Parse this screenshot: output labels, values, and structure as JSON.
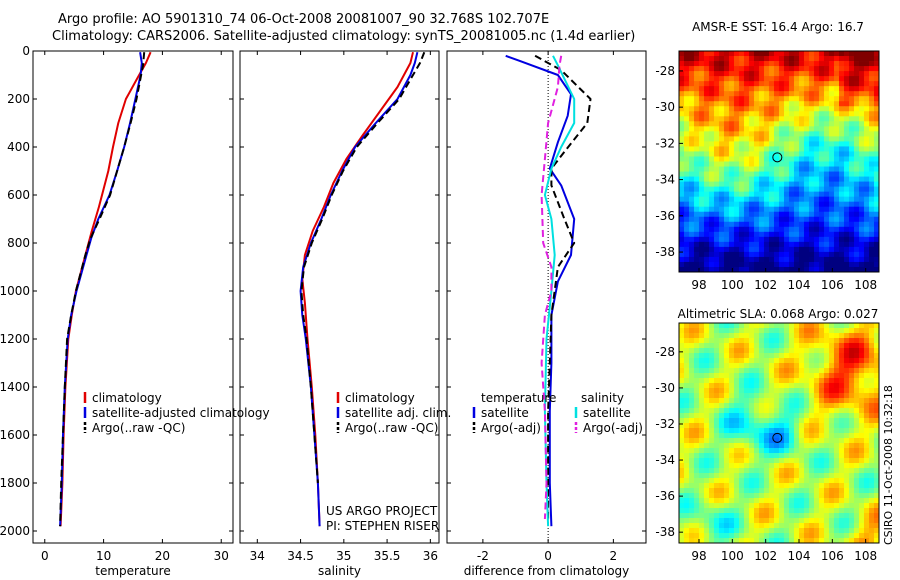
{
  "titles": {
    "line1": "Argo profile: AO 5901310_74 06-Oct-2008 20081007_90 32.768S 102.707E",
    "line2": "Climatology: CARS2006. Satellite-adjusted climatology: synTS_20081005.nc (1.4d earlier)"
  },
  "footnote": {
    "line1": "US ARGO PROJECT",
    "line2": "PI: STEPHEN RISER"
  },
  "stamp": "CSIRO 11-Oct-2008 10:32:18",
  "colors": {
    "climatology": "#e00000",
    "satellite": "#0000e0",
    "argo": "#000000",
    "cyan": "#00e0e0",
    "magenta": "#e020e0"
  },
  "chart_data": [
    {
      "type": "line",
      "xlabel": "temperature",
      "xlim": [
        -2,
        32
      ],
      "ylim": [
        2050,
        0
      ],
      "xticks": [
        0,
        10,
        20,
        30
      ],
      "yticks": [
        0,
        200,
        400,
        600,
        800,
        1000,
        1200,
        1400,
        1600,
        1800,
        2000
      ],
      "legend": {
        "placement": "lower-right",
        "entries": [
          "climatology",
          "satellite-adjusted climatology",
          "Argo(..raw -QC)"
        ]
      },
      "series": [
        {
          "name": "climatology",
          "color": "#e00000",
          "x": [
            18.0,
            17.2,
            15.6,
            13.8,
            12.5,
            11.6,
            10.8,
            9.2,
            8.0,
            6.9,
            5.3,
            4.6,
            4.0,
            3.5,
            3.2,
            3.0,
            2.7
          ],
          "y": [
            5,
            50,
            120,
            200,
            300,
            400,
            500,
            650,
            750,
            850,
            1000,
            1100,
            1200,
            1400,
            1600,
            1800,
            1980
          ]
        },
        {
          "name": "satellite-adjusted climatology",
          "color": "#0000e0",
          "x": [
            16.2,
            16.5,
            16.3,
            15.4,
            14.5,
            13.5,
            12.3,
            11.0,
            9.1,
            7.9,
            7.1,
            5.4,
            4.5,
            3.9,
            3.4,
            3.1,
            2.9,
            2.6
          ],
          "y": [
            5,
            50,
            100,
            200,
            300,
            400,
            500,
            600,
            700,
            780,
            850,
            1000,
            1100,
            1200,
            1400,
            1600,
            1800,
            1980
          ]
        },
        {
          "name": "Argo(..raw -QC)",
          "color": "#000000",
          "dashed": true,
          "x": [
            16.9,
            16.7,
            15.6,
            14.6,
            13.5,
            12.3,
            11.1,
            9.3,
            7.8,
            6.9,
            5.3,
            4.5,
            3.8,
            3.4,
            3.1,
            2.8,
            2.6
          ],
          "y": [
            5,
            60,
            200,
            300,
            400,
            500,
            600,
            700,
            780,
            850,
            1000,
            1100,
            1200,
            1400,
            1600,
            1800,
            1980
          ]
        }
      ]
    },
    {
      "type": "line",
      "xlabel": "salinity",
      "xlim": [
        33.8,
        36.1
      ],
      "ylim": [
        2050,
        0
      ],
      "xticks": [
        34,
        34.5,
        35,
        35.5,
        36
      ],
      "legend": {
        "placement": "lower-right",
        "entries": [
          "climatology",
          "satellite adj. clim.",
          "Argo(..raw -QC)"
        ]
      },
      "series": [
        {
          "name": "climatology",
          "color": "#e00000",
          "x": [
            35.8,
            35.77,
            35.62,
            35.42,
            35.22,
            35.03,
            34.88,
            34.77,
            34.64,
            34.55,
            34.52,
            34.55,
            34.58,
            34.63,
            34.67,
            34.7,
            34.72
          ],
          "y": [
            5,
            50,
            150,
            250,
            350,
            450,
            550,
            650,
            750,
            850,
            950,
            1050,
            1200,
            1400,
            1600,
            1800,
            1980
          ]
        },
        {
          "name": "satellite adj. clim.",
          "color": "#0000e0",
          "x": [
            35.85,
            35.82,
            35.77,
            35.62,
            35.37,
            35.13,
            34.98,
            34.85,
            34.74,
            34.62,
            34.53,
            34.5,
            34.52,
            34.56,
            34.62,
            34.66,
            34.7,
            34.72
          ],
          "y": [
            5,
            50,
            100,
            200,
            300,
            400,
            500,
            600,
            700,
            800,
            900,
            1000,
            1100,
            1200,
            1400,
            1600,
            1800,
            1980
          ]
        },
        {
          "name": "Argo(..raw -QC)",
          "color": "#000000",
          "dashed": true,
          "x": [
            35.93,
            35.88,
            35.8,
            35.64,
            35.39,
            35.15,
            34.99,
            34.86,
            34.75,
            34.63,
            34.54,
            34.51,
            34.53,
            34.57,
            34.62,
            34.66,
            34.7
          ],
          "y": [
            5,
            50,
            100,
            200,
            300,
            400,
            500,
            600,
            700,
            800,
            900,
            1000,
            1100,
            1200,
            1400,
            1600,
            1800
          ]
        }
      ]
    },
    {
      "type": "line",
      "xlabel": "difference from climatology",
      "xlim": [
        -3.1,
        3.0
      ],
      "ylim": [
        2050,
        0
      ],
      "xticks": [
        -2,
        0,
        2
      ],
      "legend": {
        "placement": "lower-center",
        "groups": [
          {
            "heading": "temperature",
            "entries": [
              "satellite",
              "Argo(-adj)"
            ]
          },
          {
            "heading": "salinity",
            "entries": [
              "satellite",
              "Argo(-adj)"
            ]
          }
        ]
      },
      "series": [
        {
          "name": "satellite",
          "group": "temperature",
          "color": "#0000e0",
          "x": [
            -1.3,
            -0.9,
            0.3,
            0.7,
            0.6,
            0.3,
            0.05,
            0.4,
            0.8,
            0.7,
            0.3,
            0.1,
            0.1,
            0.05,
            0.05,
            0.1
          ],
          "y": [
            20,
            40,
            100,
            180,
            270,
            380,
            490,
            560,
            700,
            850,
            960,
            1100,
            1300,
            1500,
            1800,
            1980
          ]
        },
        {
          "name": "Argo(-adj)",
          "group": "temperature",
          "color": "#000000",
          "dashed": true,
          "x": [
            -0.4,
            0.4,
            1.3,
            1.2,
            0.5,
            0.1,
            0.1,
            0.5,
            0.8,
            0.3,
            0.1,
            0.05,
            0.0,
            0.0,
            0.0
          ],
          "y": [
            20,
            80,
            200,
            300,
            420,
            490,
            560,
            700,
            800,
            900,
            1100,
            1300,
            1500,
            1800,
            1950
          ]
        },
        {
          "name": "satellite",
          "group": "salinity",
          "color": "#00e0e0",
          "x": [
            0.15,
            0.3,
            0.8,
            0.8,
            0.4,
            0.1,
            -0.1,
            0.1,
            0.2,
            0.1,
            -0.05,
            -0.1,
            -0.05,
            0.0
          ],
          "y": [
            20,
            60,
            200,
            300,
            400,
            490,
            600,
            700,
            850,
            1000,
            1200,
            1500,
            1800,
            1980
          ]
        },
        {
          "name": "Argo(-adj)",
          "group": "salinity",
          "color": "#e020e0",
          "dashed": true,
          "x": [
            0.4,
            0.35,
            0.3,
            0.0,
            -0.1,
            -0.2,
            -0.15,
            0.1,
            0.1,
            -0.1,
            -0.2,
            -0.1,
            -0.05,
            -0.1
          ],
          "y": [
            20,
            60,
            150,
            300,
            450,
            600,
            800,
            900,
            1000,
            1100,
            1300,
            1500,
            1800,
            1950
          ]
        }
      ]
    },
    {
      "type": "heatmap",
      "title": "AMSR-E SST: 16.4 Argo: 16.7",
      "xlim": [
        96.8,
        108.8
      ],
      "ylim": [
        -39.1,
        -26.9
      ],
      "xticks": [
        98,
        100,
        102,
        104,
        106,
        108
      ],
      "yticks": [
        -28,
        -30,
        -32,
        -34,
        -36,
        -38
      ],
      "marker": {
        "x": 102.7,
        "y": -32.77
      }
    },
    {
      "type": "heatmap",
      "title": "Altimetric SLA: 0.068 Argo: 0.027",
      "xlim": [
        96.8,
        108.8
      ],
      "ylim": [
        -38.6,
        -26.4
      ],
      "xticks": [
        98,
        100,
        102,
        104,
        106,
        108
      ],
      "yticks": [
        -28,
        -30,
        -32,
        -34,
        -36,
        -38
      ],
      "marker": {
        "x": 102.7,
        "y": -32.77
      }
    }
  ]
}
